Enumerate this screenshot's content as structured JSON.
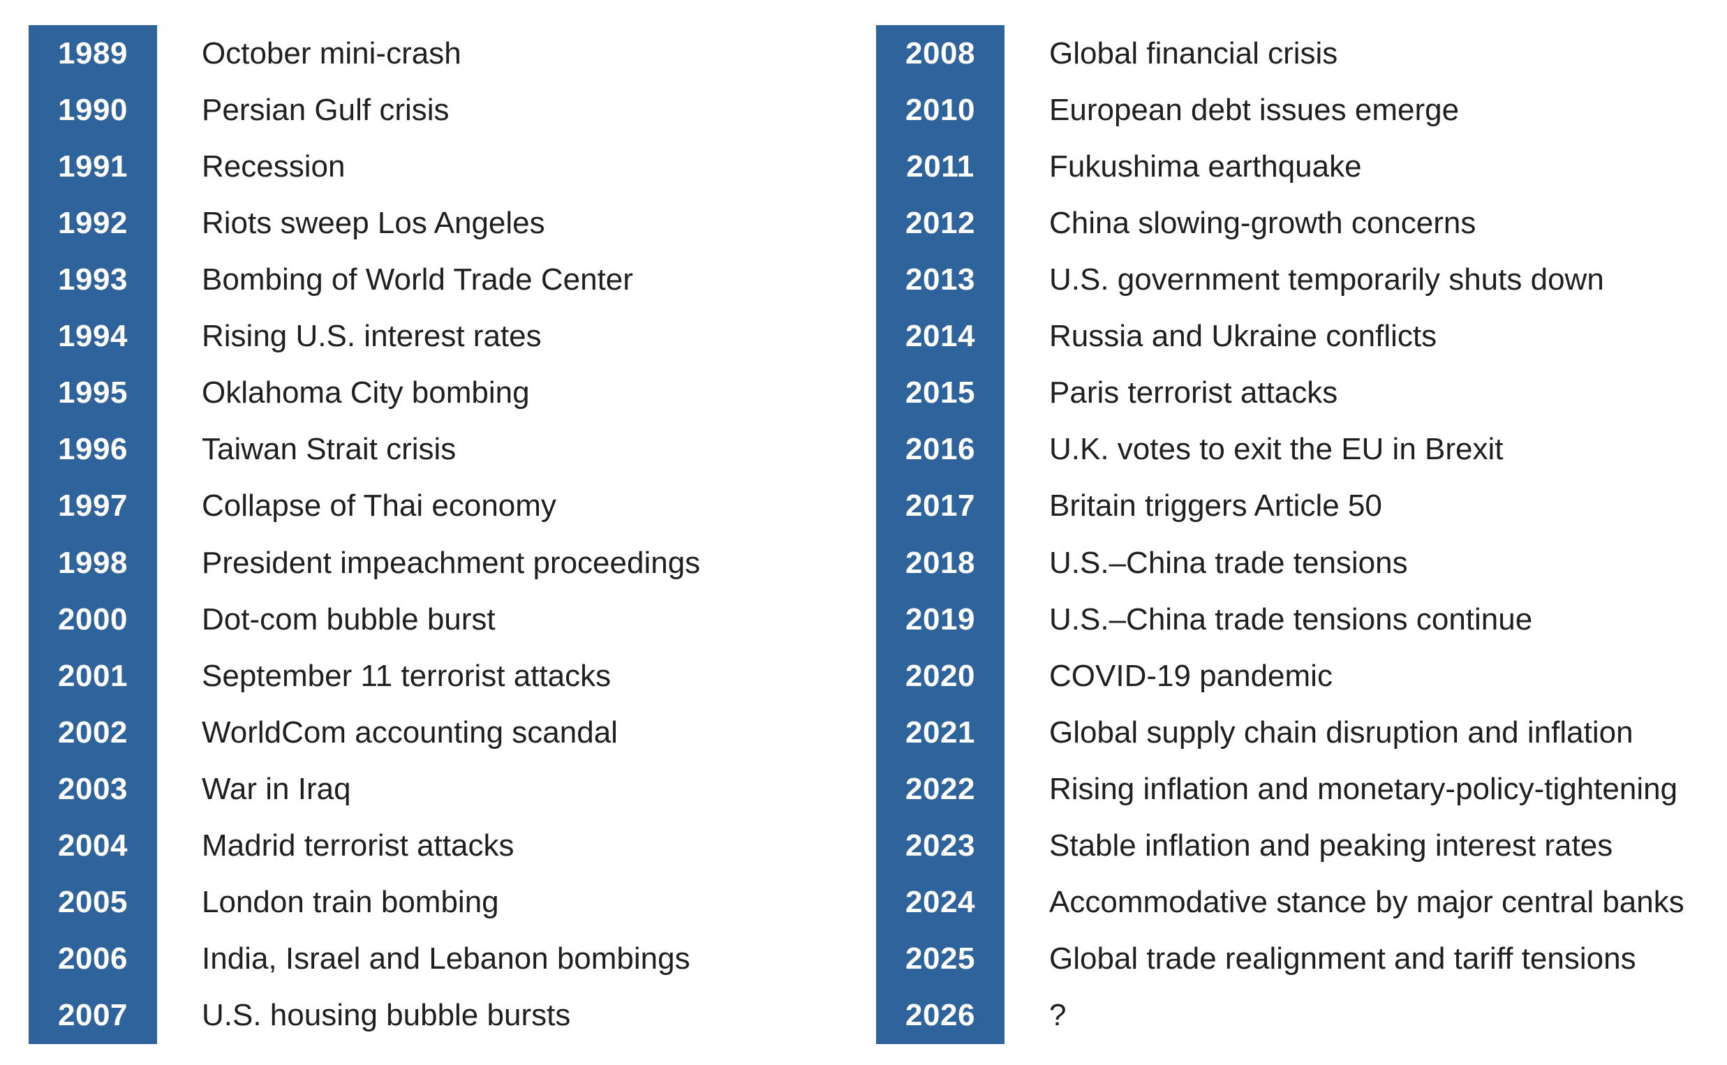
{
  "left_column": [
    {
      "year": "1989",
      "event": "October mini-crash"
    },
    {
      "year": "1990",
      "event": "Persian Gulf crisis"
    },
    {
      "year": "1991",
      "event": "Recession"
    },
    {
      "year": "1992",
      "event": "Riots sweep Los Angeles"
    },
    {
      "year": "1993",
      "event": "Bombing of World Trade Center"
    },
    {
      "year": "1994",
      "event": "Rising U.S. interest rates"
    },
    {
      "year": "1995",
      "event": "Oklahoma City bombing"
    },
    {
      "year": "1996",
      "event": "Taiwan Strait crisis"
    },
    {
      "year": "1997",
      "event": "Collapse of Thai economy"
    },
    {
      "year": "1998",
      "event": "President impeachment proceedings"
    },
    {
      "year": "2000",
      "event": "Dot-com bubble burst"
    },
    {
      "year": "2001",
      "event": "September 11 terrorist attacks"
    },
    {
      "year": "2002",
      "event": "WorldCom accounting scandal"
    },
    {
      "year": "2003",
      "event": "War in Iraq"
    },
    {
      "year": "2004",
      "event": "Madrid terrorist attacks"
    },
    {
      "year": "2005",
      "event": "London train bombing"
    },
    {
      "year": "2006",
      "event": "India, Israel and Lebanon bombings"
    },
    {
      "year": "2007",
      "event": "U.S. housing bubble bursts"
    }
  ],
  "right_column": [
    {
      "year": "2008",
      "event": "Global financial crisis"
    },
    {
      "year": "2010",
      "event": "European debt issues emerge"
    },
    {
      "year": "2011",
      "event": "Fukushima earthquake"
    },
    {
      "year": "2012",
      "event": "China slowing-growth concerns"
    },
    {
      "year": "2013",
      "event": "U.S. government temporarily shuts down"
    },
    {
      "year": "2014",
      "event": "Russia and Ukraine conflicts"
    },
    {
      "year": "2015",
      "event": "Paris terrorist attacks"
    },
    {
      "year": "2016",
      "event": "U.K. votes to exit the EU in Brexit"
    },
    {
      "year": "2017",
      "event": "Britain triggers Article 50"
    },
    {
      "year": "2018",
      "event": "U.S.–China trade tensions"
    },
    {
      "year": "2019",
      "event": "U.S.–China trade tensions continue"
    },
    {
      "year": "2020",
      "event": "COVID-19 pandemic"
    },
    {
      "year": "2021",
      "event": "Global supply chain disruption and inflation"
    },
    {
      "year": "2022",
      "event": "Rising inflation and monetary-policy-tightening"
    },
    {
      "year": "2023",
      "event": "Stable inflation and peaking interest rates"
    },
    {
      "year": "2024",
      "event": "Accommodative stance by major central banks"
    },
    {
      "year": "2025",
      "event": "Global trade realignment and tariff tensions"
    },
    {
      "year": "2026",
      "event": "?"
    }
  ],
  "colors": {
    "year_bar": "#2f639c",
    "year_text": "#ffffff",
    "event_text": "#1f1f1f"
  }
}
